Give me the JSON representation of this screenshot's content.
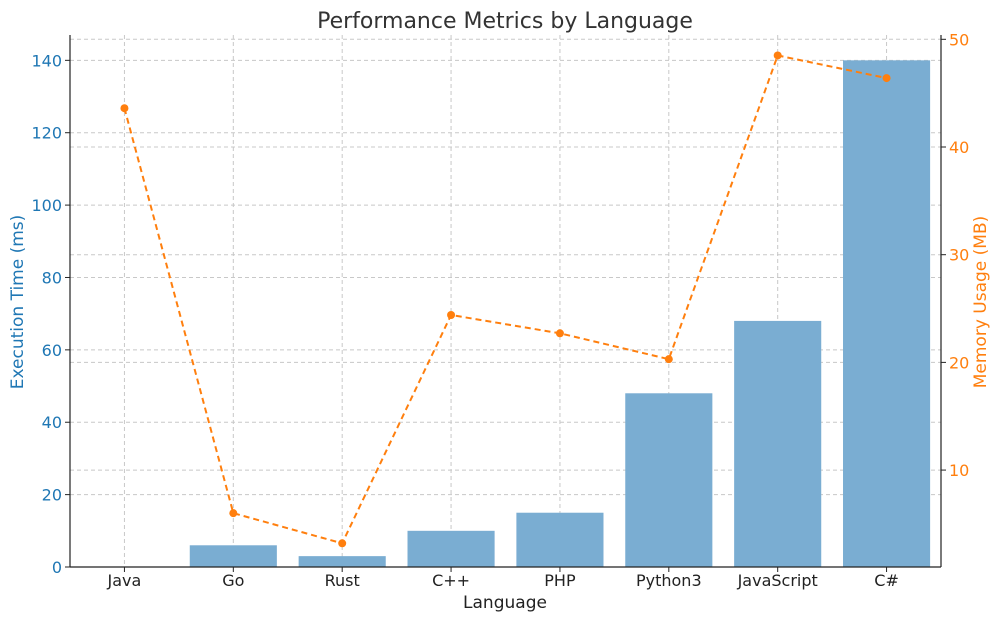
{
  "chart_data": {
    "type": "bar",
    "title": "Performance Metrics by Language",
    "xlabel": "Language",
    "ylabel": "Execution Time (ms)",
    "y2label": "Memory Usage (MB)",
    "categories": [
      "Java",
      "Go",
      "Rust",
      "C++",
      "PHP",
      "Python3",
      "JavaScript",
      "C#"
    ],
    "series": [
      {
        "name": "Execution Time (ms)",
        "type": "bar",
        "axis": "left",
        "color": "#7aadd2",
        "values": [
          0,
          6,
          3,
          10,
          15,
          48,
          68,
          140
        ]
      },
      {
        "name": "Memory Usage (MB)",
        "type": "line",
        "style": "dashed",
        "axis": "right",
        "color": "#ff7f0e",
        "values": [
          43.6,
          6.0,
          3.2,
          24.4,
          22.7,
          20.3,
          48.5,
          46.4
        ]
      }
    ],
    "ylim": [
      0,
      147
    ],
    "y2lim": [
      1,
      50.4
    ],
    "yticks": [
      0,
      20,
      40,
      60,
      80,
      100,
      120,
      140
    ],
    "y2ticks": [
      10,
      20,
      30,
      40,
      50
    ],
    "grid": true,
    "left_axis_color": "#1f77b4",
    "right_axis_color": "#ff7f0e"
  }
}
